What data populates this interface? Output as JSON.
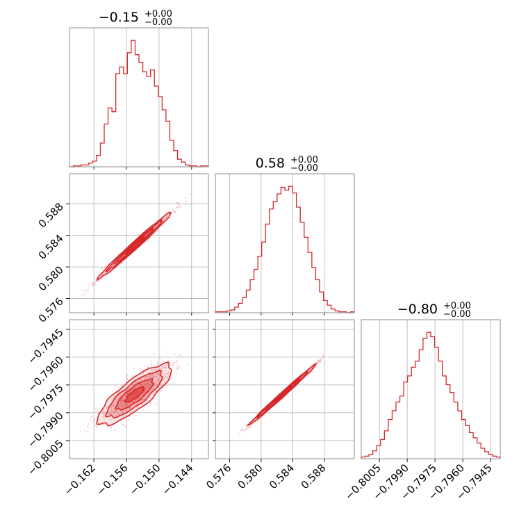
{
  "colors": {
    "hist": "#d62728",
    "grid": "#b0b0b0",
    "frame": "#808080",
    "contour_fill": "#d62728",
    "scatter": "#f4a3a8"
  },
  "titles": [
    {
      "value": "−0.15",
      "plus": "+0.00",
      "minus": "−0.00"
    },
    {
      "value": "0.58",
      "plus": "+0.00",
      "minus": "−0.00"
    },
    {
      "value": "−0.80",
      "plus": "+0.00",
      "minus": "−0.00"
    }
  ],
  "chart_data": {
    "type": "scatter",
    "subtype": "corner",
    "grid": true,
    "parameters": [
      {
        "range": [
          -0.1665,
          -0.1409
        ],
        "ticks": [
          -0.162,
          -0.156,
          -0.15,
          -0.144
        ],
        "tick_labels": [
          "−0.162",
          "−0.156",
          "−0.150",
          "−0.144"
        ],
        "median": -0.1528
      },
      {
        "range": [
          0.5742,
          0.5918
        ],
        "ticks": [
          0.576,
          0.58,
          0.584,
          0.588
        ],
        "tick_labels": [
          "0.576",
          "0.580",
          "0.584",
          "0.588"
        ],
        "median": 0.5827
      },
      {
        "range": [
          -0.80148,
          -0.79398
        ],
        "ticks": [
          -0.8005,
          -0.799,
          -0.7975,
          -0.796,
          -0.7945
        ],
        "tick_labels": [
          "−0.8005",
          "−0.7990",
          "−0.7975",
          "−0.7960",
          "−0.7945"
        ],
        "median": -0.79802
      }
    ],
    "histograms": [
      {
        "param": 0,
        "counts": [
          0,
          1,
          1,
          2,
          2,
          4,
          6,
          12,
          25,
          45,
          62,
          58,
          98,
          105,
          98,
          120,
          133,
          118,
          110,
          100,
          95,
          102,
          85,
          74,
          60,
          48,
          28,
          17,
          8,
          5,
          2,
          1,
          1,
          0,
          1,
          1
        ]
      },
      {
        "param": 1,
        "counts": [
          1,
          1,
          1,
          2,
          3,
          6,
          10,
          16,
          24,
          35,
          46,
          60,
          75,
          94,
          110,
          118,
          126,
          133,
          130,
          134,
          127,
          112,
          96,
          80,
          64,
          48,
          35,
          22,
          13,
          8,
          4,
          2,
          1,
          1,
          0,
          1
        ]
      },
      {
        "param": 2,
        "counts": [
          2,
          3,
          5,
          9,
          15,
          22,
          32,
          45,
          55,
          65,
          72,
          88,
          95,
          105,
          112,
          125,
          138,
          145,
          140,
          128,
          112,
          95,
          85,
          76,
          65,
          55,
          45,
          38,
          30,
          24,
          18,
          12,
          8,
          5,
          3,
          2
        ]
      }
    ],
    "contours": [
      {
        "px": 0,
        "py": 1,
        "center": [
          -0.1545,
          0.5827
        ],
        "sd": [
          0.0034,
          0.00212
        ],
        "corr": 0.99,
        "seed": 11,
        "n": 650
      },
      {
        "px": 0,
        "py": 2,
        "center": [
          -0.1545,
          -0.79802
        ],
        "sd": [
          0.0034,
          0.00082
        ],
        "corr": 0.82,
        "seed": 23,
        "n": 650
      },
      {
        "px": 1,
        "py": 2,
        "center": [
          0.5827,
          -0.79802
        ],
        "sd": [
          0.00212,
          0.00082
        ],
        "corr": 0.995,
        "seed": 37,
        "n": 650
      }
    ]
  }
}
